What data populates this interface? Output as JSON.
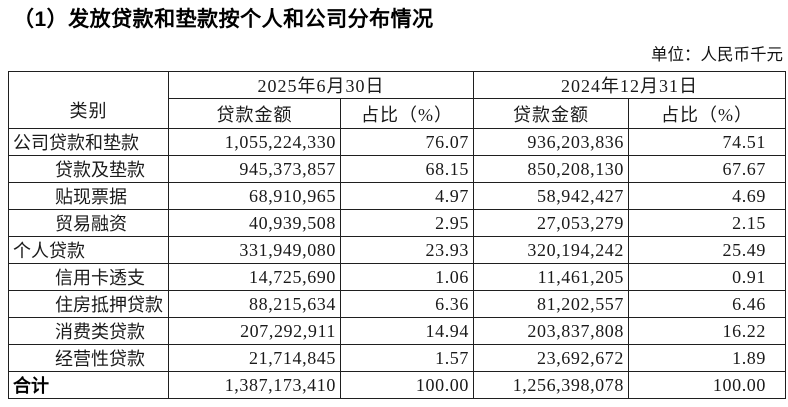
{
  "title": "（1）发放贷款和垫款按个人和公司分布情况",
  "unit_label": "单位：人民币千元",
  "table": {
    "category_header": "类别",
    "period_headers": [
      "2025年6月30日",
      "2024年12月31日"
    ],
    "sub_headers": [
      "贷款金额",
      "占比（%）",
      "贷款金额",
      "占比（%）"
    ],
    "rows": [
      {
        "category": "公司贷款和垫款",
        "indent": false,
        "bold": false,
        "amount_2025": "1,055,224,330",
        "pct_2025": "76.07",
        "amount_2024": "936,203,836",
        "pct_2024": "74.51"
      },
      {
        "category": "贷款及垫款",
        "indent": true,
        "bold": false,
        "amount_2025": "945,373,857",
        "pct_2025": "68.15",
        "amount_2024": "850,208,130",
        "pct_2024": "67.67"
      },
      {
        "category": "贴现票据",
        "indent": true,
        "bold": false,
        "amount_2025": "68,910,965",
        "pct_2025": "4.97",
        "amount_2024": "58,942,427",
        "pct_2024": "4.69"
      },
      {
        "category": "贸易融资",
        "indent": true,
        "bold": false,
        "amount_2025": "40,939,508",
        "pct_2025": "2.95",
        "amount_2024": "27,053,279",
        "pct_2024": "2.15"
      },
      {
        "category": "个人贷款",
        "indent": false,
        "bold": false,
        "amount_2025": "331,949,080",
        "pct_2025": "23.93",
        "amount_2024": "320,194,242",
        "pct_2024": "25.49"
      },
      {
        "category": "信用卡透支",
        "indent": true,
        "bold": false,
        "amount_2025": "14,725,690",
        "pct_2025": "1.06",
        "amount_2024": "11,461,205",
        "pct_2024": "0.91"
      },
      {
        "category": "住房抵押贷款",
        "indent": true,
        "bold": false,
        "amount_2025": "88,215,634",
        "pct_2025": "6.36",
        "amount_2024": "81,202,557",
        "pct_2024": "6.46"
      },
      {
        "category": "消费类贷款",
        "indent": true,
        "bold": false,
        "amount_2025": "207,292,911",
        "pct_2025": "14.94",
        "amount_2024": "203,837,808",
        "pct_2024": "16.22"
      },
      {
        "category": "经营性贷款",
        "indent": true,
        "bold": false,
        "amount_2025": "21,714,845",
        "pct_2025": "1.57",
        "amount_2024": "23,692,672",
        "pct_2024": "1.89"
      },
      {
        "category": "合计",
        "indent": false,
        "bold": true,
        "amount_2025": "1,387,173,410",
        "pct_2025": "100.00",
        "amount_2024": "1,256,398,078",
        "pct_2024": "100.00"
      }
    ]
  }
}
